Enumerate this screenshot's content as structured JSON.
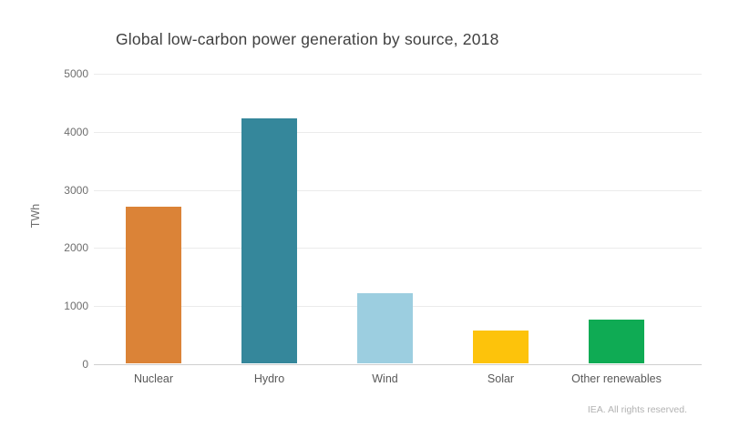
{
  "title": "Global low-carbon power generation by source, 2018",
  "footer": {
    "credit": "IEA. All rights reserved."
  },
  "colors": {
    "title_text": "#3f3f3f",
    "axis_text": "#6e6e6e",
    "gridline": "#ebebeb",
    "baseline": "#cfcfcf",
    "credit_text": "#b2b2b2"
  },
  "chart_data": {
    "type": "bar",
    "title": "Global low-carbon power generation by source, 2018",
    "categories": [
      "Nuclear",
      "Hydro",
      "Wind",
      "Solar",
      "Other renewables"
    ],
    "values": [
      2700,
      4220,
      1200,
      570,
      750
    ],
    "bar_colors": [
      "#db8337",
      "#35879b",
      "#9ccee0",
      "#fdc30b",
      "#0fab54"
    ],
    "xlabel": "",
    "ylabel": "TWh",
    "ylim": [
      0,
      5000
    ],
    "yticks": [
      0,
      1000,
      2000,
      3000,
      4000,
      5000
    ],
    "grid": "horizontal-only",
    "legend": "none",
    "unit": "TWh"
  }
}
